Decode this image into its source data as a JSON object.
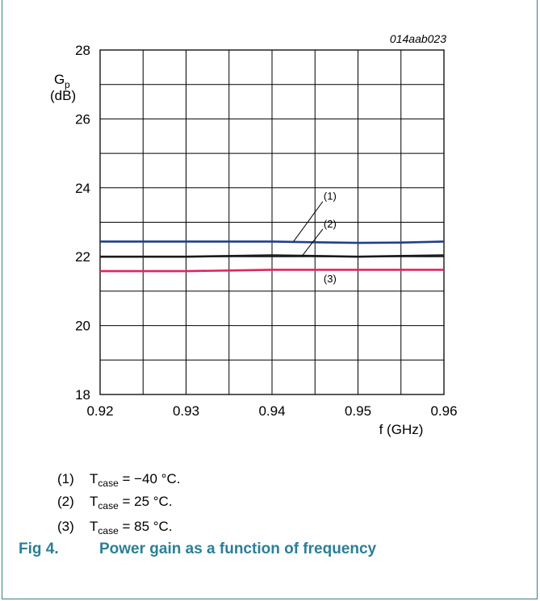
{
  "chart_data": {
    "type": "line",
    "figure_code": "014aab023",
    "ylabel_main": "G",
    "ylabel_sub": "p",
    "yunit": "(dB)",
    "xlabel": "f (GHz)",
    "xlim": [
      0.92,
      0.96
    ],
    "ylim": [
      18,
      28
    ],
    "xticks": [
      "0.92",
      "0.93",
      "0.94",
      "0.95",
      "0.96"
    ],
    "yticks": [
      "18",
      "20",
      "22",
      "24",
      "26",
      "28"
    ],
    "grid": true,
    "series": [
      {
        "name": "(1)",
        "color": "#1f3f8f",
        "x": [
          0.92,
          0.93,
          0.94,
          0.945,
          0.95,
          0.955,
          0.96
        ],
        "y": [
          22.44,
          22.44,
          22.44,
          22.42,
          22.4,
          22.41,
          22.44
        ]
      },
      {
        "name": "(2)",
        "color": "#1a1a1a",
        "x": [
          0.92,
          0.93,
          0.94,
          0.945,
          0.95,
          0.955,
          0.96
        ],
        "y": [
          22.0,
          22.0,
          22.04,
          22.02,
          22.0,
          22.02,
          22.04
        ]
      },
      {
        "name": "(3)",
        "color": "#e0245e",
        "x": [
          0.92,
          0.93,
          0.935,
          0.94,
          0.95,
          0.96
        ],
        "y": [
          21.58,
          21.58,
          21.6,
          21.62,
          21.62,
          21.62
        ]
      }
    ],
    "annotations": [
      {
        "label": "(1)",
        "x": 0.946,
        "y": 23.65,
        "target_x": 0.9425,
        "target_y": 22.44
      },
      {
        "label": "(2)",
        "x": 0.946,
        "y": 22.85,
        "target_x": 0.9435,
        "target_y": 22.02
      },
      {
        "label": "(3)",
        "x": 0.946,
        "y": 21.25
      }
    ]
  },
  "notes": [
    {
      "num": "(1)",
      "t": "T",
      "sub": "case",
      "rest": " = −40 °C."
    },
    {
      "num": "(2)",
      "t": "T",
      "sub": "case",
      "rest": " = 25 °C."
    },
    {
      "num": "(3)",
      "t": "T",
      "sub": "case",
      "rest": " = 85 °C."
    }
  ],
  "caption": {
    "fig": "Fig 4.",
    "title": "Power gain as a function of frequency"
  }
}
